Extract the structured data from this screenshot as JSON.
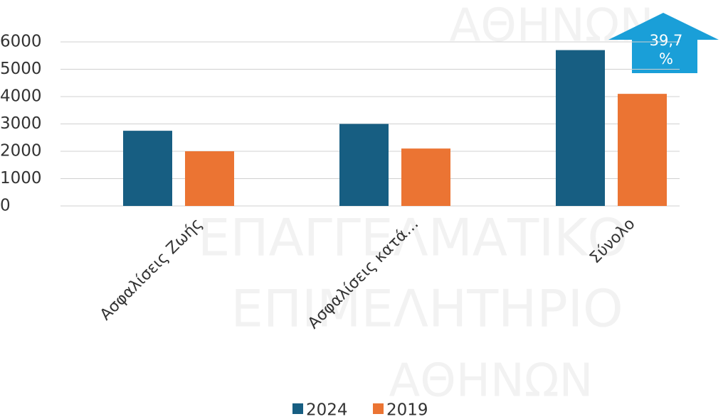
{
  "chart_data": {
    "type": "bar",
    "categories": [
      "Ασφαλίσεις Ζωής",
      "Ασφαλίσεις κατά…",
      "Σύνολο"
    ],
    "series": [
      {
        "name": "2024",
        "color": "#175e82",
        "values": [
          2750,
          3000,
          5700
        ]
      },
      {
        "name": "2019",
        "color": "#eb7433",
        "values": [
          2000,
          2100,
          4100
        ]
      }
    ],
    "ylim": [
      0,
      6000
    ],
    "yticks": [
      0,
      1000,
      2000,
      3000,
      4000,
      5000,
      6000
    ],
    "grid": true,
    "legend": "bottom",
    "annotation": "39,7 %",
    "watermark": [
      "ΑΘΗΝΩΝ",
      "ΕΠΑΓΓΕΛΜΑΤΙΚΟ",
      "ΕΠΙΜΕΛΗΤΗΡΙΟ",
      "ΑΘΗΝΩΝ"
    ]
  }
}
